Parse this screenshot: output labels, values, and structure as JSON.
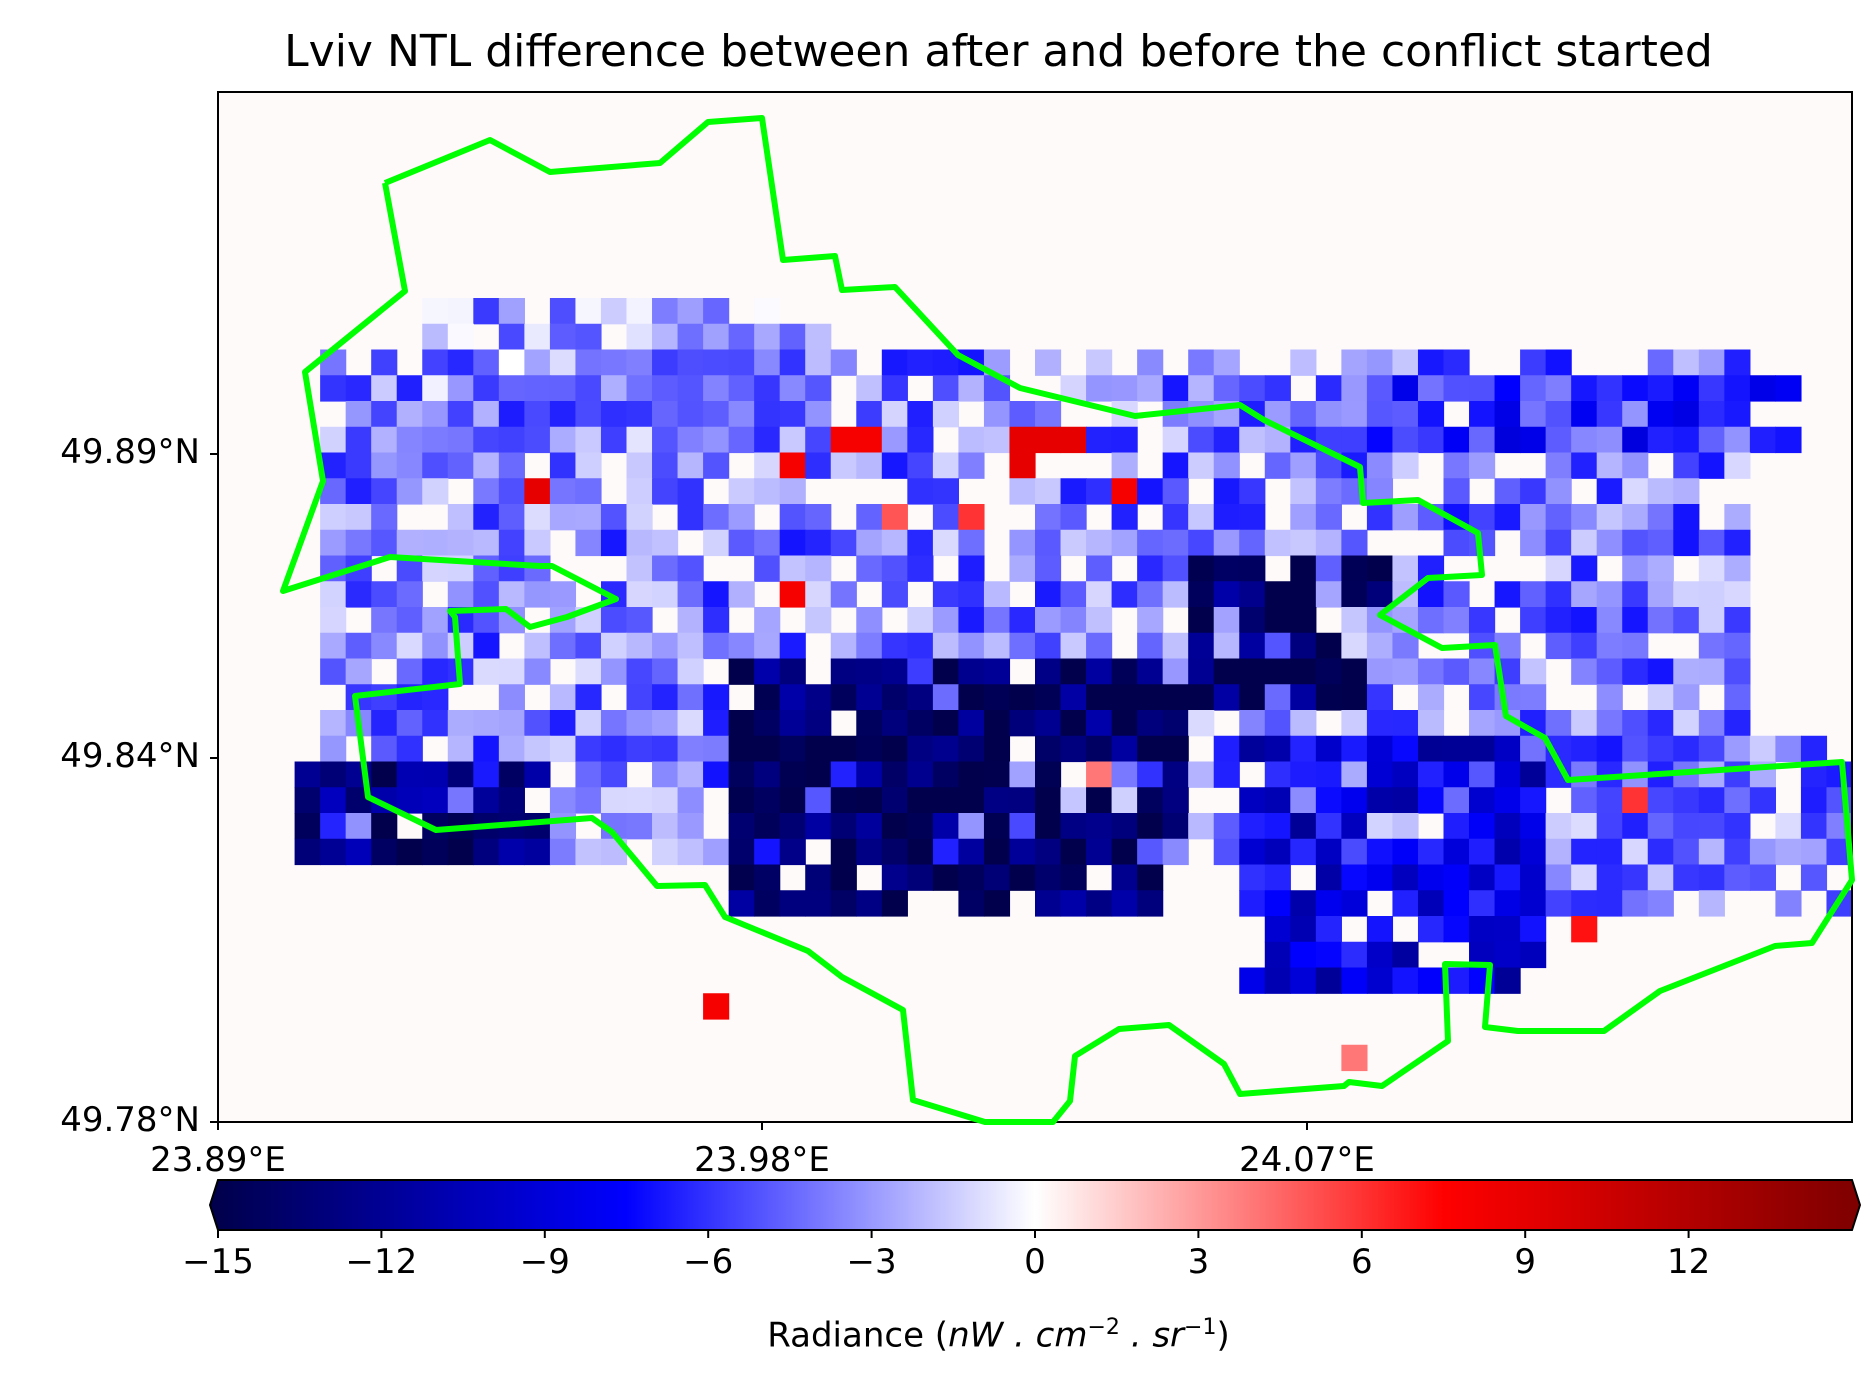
{
  "chart_data": {
    "type": "heatmap",
    "title": "Lviv NTL difference between after and before the conflict started",
    "x_ticks": [
      "23.89°E",
      "23.98°E",
      "24.07°E"
    ],
    "y_ticks": [
      "49.89°N",
      "49.84°N",
      "49.78°N"
    ],
    "colorbar": {
      "cmap": "seismic",
      "range": [
        -15,
        15
      ],
      "ticks": [
        "−15",
        "−12",
        "−9",
        "−6",
        "−3",
        "0",
        "3",
        "6",
        "9",
        "12"
      ],
      "extend": "both",
      "label_prefix": "Radiance (",
      "label_units": "nW . cm",
      "label_exp1": "−2",
      "label_mid": " . sr",
      "label_exp2": "−1",
      "label_suffix": ")"
    },
    "boundary_color": "#00ff00",
    "grid_columns": 64,
    "grid_rows": 40,
    "values_note": "",
    "regions": [
      {
        "col0": 20,
        "row0": 22,
        "col1": 38,
        "row1": 32,
        "value": -14
      },
      {
        "col0": 38,
        "row0": 18,
        "col1": 46,
        "row1": 24,
        "value": -14
      },
      {
        "col0": 3,
        "row0": 26,
        "col1": 13,
        "row1": 30,
        "value": -13
      },
      {
        "col0": 40,
        "row0": 25,
        "col1": 52,
        "row1": 35,
        "value": -9
      },
      {
        "col0": 4,
        "row0": 10,
        "col1": 60,
        "row1": 30,
        "value": -4
      },
      {
        "col0": 8,
        "row0": 8,
        "col1": 24,
        "row1": 14,
        "value": -3
      },
      {
        "col0": 45,
        "row0": 11,
        "col1": 62,
        "row1": 14,
        "value": -6
      },
      {
        "col0": 48,
        "row0": 25,
        "col1": 64,
        "row1": 32,
        "value": -4
      }
    ],
    "hot_pixels": [
      {
        "col": 24,
        "row": 13,
        "value": 8
      },
      {
        "col": 25,
        "row": 13,
        "value": 8
      },
      {
        "col": 22,
        "row": 14,
        "value": 8
      },
      {
        "col": 31,
        "row": 13,
        "value": 9
      },
      {
        "col": 32,
        "row": 13,
        "value": 9
      },
      {
        "col": 33,
        "row": 13,
        "value": 9
      },
      {
        "col": 31,
        "row": 14,
        "value": 9
      },
      {
        "col": 35,
        "row": 15,
        "value": 8
      },
      {
        "col": 12,
        "row": 15,
        "value": 9
      },
      {
        "col": 22,
        "row": 19,
        "value": 8
      },
      {
        "col": 34,
        "row": 26,
        "value": 4
      },
      {
        "col": 55,
        "row": 27,
        "value": 6
      },
      {
        "col": 53,
        "row": 32,
        "value": 7
      },
      {
        "col": 19,
        "row": 35,
        "value": 8
      },
      {
        "col": 26,
        "row": 16,
        "value": 5
      },
      {
        "col": 29,
        "row": 16,
        "value": 6
      },
      {
        "col": 44,
        "row": 37,
        "value": 4
      }
    ]
  }
}
